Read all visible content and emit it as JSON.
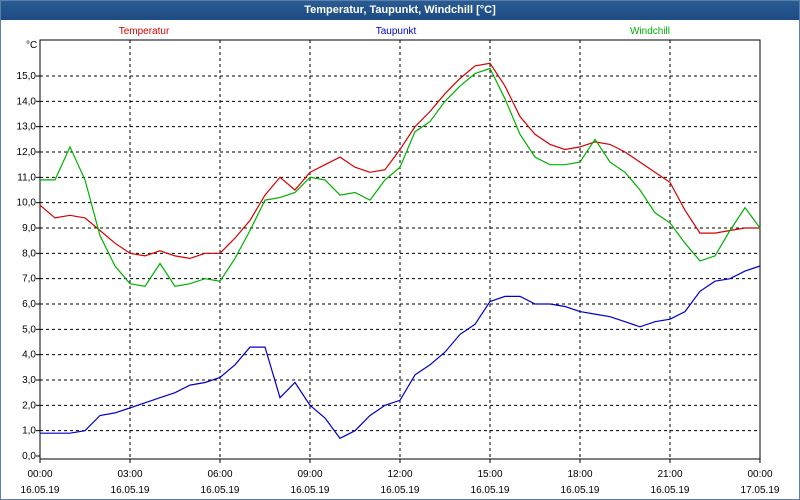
{
  "window": {
    "title": "Temperatur, Taupunkt, Windchill [°C]"
  },
  "chart_data": {
    "type": "line",
    "title": "Temperatur, Taupunkt, Windchill [°C]",
    "ylabel": "°C",
    "xlabel": "",
    "ylim": [
      0,
      16
    ],
    "xlim": [
      0,
      24
    ],
    "grid": true,
    "legend_position": "top",
    "y_ticks": [
      "0,0",
      "1,0",
      "2,0",
      "3,0",
      "4,0",
      "5,0",
      "6,0",
      "7,0",
      "8,0",
      "9,0",
      "10,0",
      "11,0",
      "12,0",
      "13,0",
      "14,0",
      "15,0"
    ],
    "x_ticks": [
      {
        "time": "00:00",
        "date": "16.05.19"
      },
      {
        "time": "03:00",
        "date": "16.05.19"
      },
      {
        "time": "06:00",
        "date": "16.05.19"
      },
      {
        "time": "09:00",
        "date": "16.05.19"
      },
      {
        "time": "12:00",
        "date": "16.05.19"
      },
      {
        "time": "15:00",
        "date": "16.05.19"
      },
      {
        "time": "18:00",
        "date": "16.05.19"
      },
      {
        "time": "21:00",
        "date": "16.05.19"
      },
      {
        "time": "00:00",
        "date": "17.05.19"
      }
    ],
    "x": [
      0,
      0.5,
      1,
      1.5,
      2,
      2.5,
      3,
      3.5,
      4,
      4.5,
      5,
      5.5,
      6,
      6.5,
      7,
      7.5,
      8,
      8.5,
      9,
      9.5,
      10,
      10.5,
      11,
      11.5,
      12,
      12.5,
      13,
      13.5,
      14,
      14.5,
      15,
      15.5,
      16,
      16.5,
      17,
      17.5,
      18,
      18.5,
      19,
      19.5,
      20,
      20.5,
      21,
      21.5,
      22,
      22.5,
      23,
      23.5,
      24
    ],
    "series": [
      {
        "name": "Temperatur",
        "color": "#d40000",
        "values": [
          9.9,
          9.4,
          9.5,
          9.4,
          8.9,
          8.4,
          8.0,
          7.9,
          8.1,
          7.9,
          7.8,
          8.0,
          8.0,
          8.6,
          9.3,
          10.3,
          11.0,
          10.5,
          11.2,
          11.5,
          11.8,
          11.4,
          11.2,
          11.3,
          12.1,
          13.0,
          13.6,
          14.3,
          14.9,
          15.4,
          15.5,
          14.6,
          13.4,
          12.7,
          12.3,
          12.1,
          12.2,
          12.4,
          12.3,
          12.0,
          11.6,
          11.2,
          10.8,
          9.7,
          8.8,
          8.8,
          8.9,
          9.0,
          9.0
        ]
      },
      {
        "name": "Taupunkt",
        "color": "#0000c8",
        "values": [
          0.9,
          0.9,
          0.9,
          1.0,
          1.6,
          1.7,
          1.9,
          2.1,
          2.3,
          2.5,
          2.8,
          2.9,
          3.1,
          3.6,
          4.3,
          4.3,
          2.3,
          2.9,
          2.0,
          1.5,
          0.7,
          1.0,
          1.6,
          2.0,
          2.2,
          3.2,
          3.6,
          4.1,
          4.8,
          5.2,
          6.1,
          6.3,
          6.3,
          6.0,
          6.0,
          5.9,
          5.7,
          5.6,
          5.5,
          5.3,
          5.1,
          5.3,
          5.4,
          5.7,
          6.5,
          6.9,
          7.0,
          7.3,
          7.5
        ]
      },
      {
        "name": "Windchill",
        "color": "#00b000",
        "values": [
          10.9,
          10.9,
          12.2,
          10.9,
          8.7,
          7.5,
          6.8,
          6.7,
          7.6,
          6.7,
          6.8,
          7.0,
          6.9,
          7.8,
          8.9,
          10.1,
          10.2,
          10.4,
          11.0,
          10.9,
          10.3,
          10.4,
          10.1,
          10.9,
          11.4,
          12.8,
          13.2,
          14.0,
          14.6,
          15.1,
          15.3,
          14.1,
          12.7,
          11.8,
          11.5,
          11.5,
          11.6,
          12.5,
          11.6,
          11.2,
          10.5,
          9.6,
          9.2,
          8.4,
          7.7,
          7.9,
          8.9,
          9.8,
          9.0
        ]
      }
    ]
  }
}
